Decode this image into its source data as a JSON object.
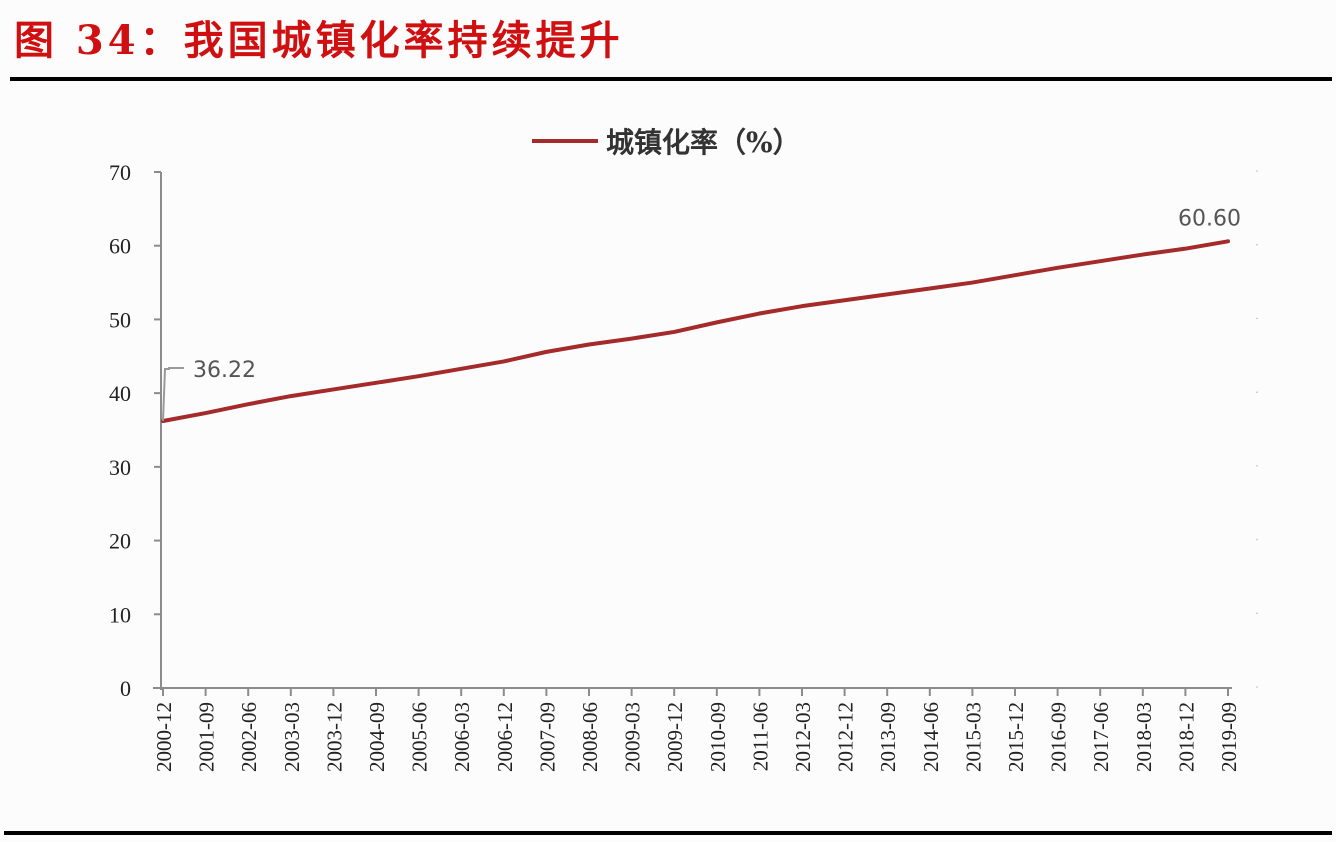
{
  "figure": {
    "title": "图 34：我国城镇化率持续提升"
  },
  "colors": {
    "title": "#d01010",
    "series": "#a52a2a",
    "axis": "#8c8c8c"
  },
  "chart_data": {
    "type": "line",
    "title": "",
    "legend": [
      "城镇化率（%）"
    ],
    "legend_position": "top",
    "xlabel": "",
    "ylabel": "",
    "ylim": [
      0,
      70
    ],
    "yticks": [
      0,
      10,
      20,
      30,
      40,
      50,
      60,
      70
    ],
    "grid": false,
    "x": [
      "2000-12",
      "2001-09",
      "2002-06",
      "2003-03",
      "2003-12",
      "2004-09",
      "2005-06",
      "2006-03",
      "2006-12",
      "2007-09",
      "2008-06",
      "2009-03",
      "2009-12",
      "2010-09",
      "2011-06",
      "2012-03",
      "2012-12",
      "2013-09",
      "2014-06",
      "2015-03",
      "2015-12",
      "2016-09",
      "2017-06",
      "2018-03",
      "2018-12",
      "2019-09"
    ],
    "series": [
      {
        "name": "城镇化率（%）",
        "values": [
          36.22,
          37.3,
          38.5,
          39.6,
          40.5,
          41.4,
          42.3,
          43.3,
          44.3,
          45.6,
          46.6,
          47.4,
          48.3,
          49.6,
          50.8,
          51.8,
          52.6,
          53.4,
          54.2,
          55.0,
          56.0,
          57.0,
          57.9,
          58.8,
          59.6,
          60.6
        ]
      }
    ],
    "annotations": [
      {
        "x": "2000-12",
        "label": "36.22"
      },
      {
        "x": "2019-09",
        "label": "60.60"
      }
    ]
  }
}
